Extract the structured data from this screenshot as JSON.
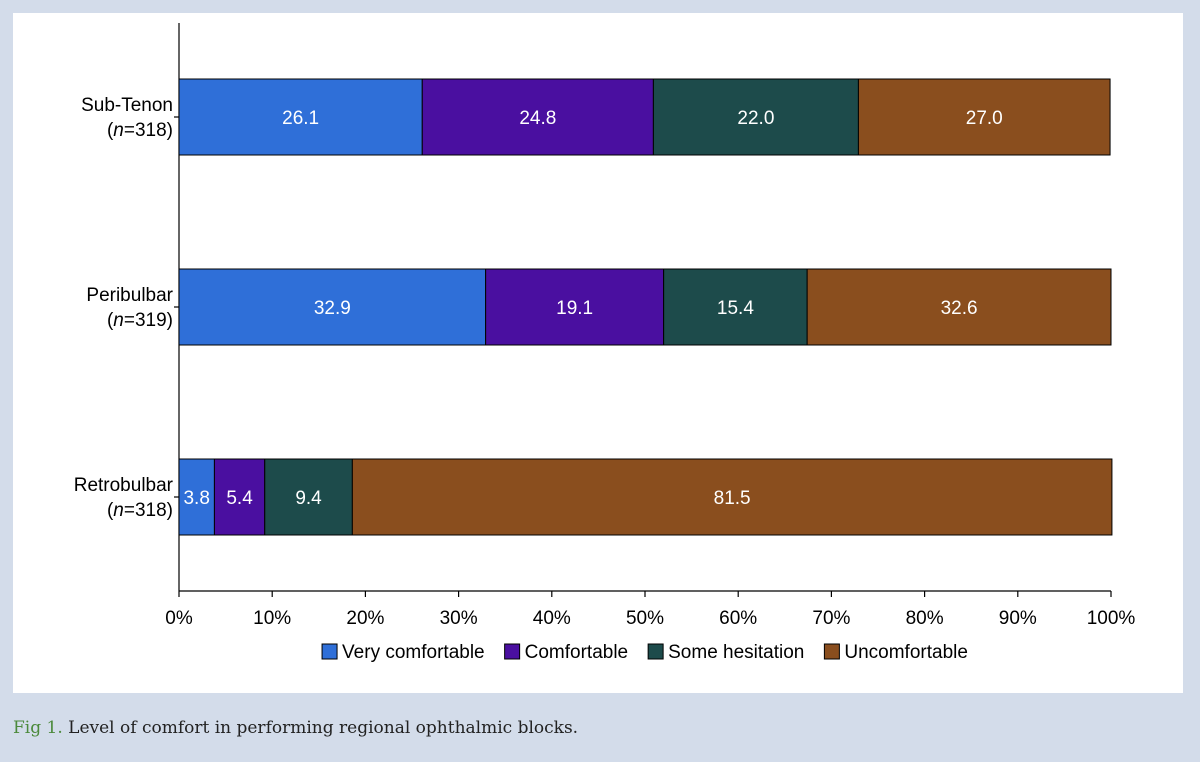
{
  "chart_data": {
    "type": "bar",
    "orientation": "horizontal",
    "stacked": true,
    "categories": [
      {
        "name": "Sub-Tenon",
        "n_label": "n",
        "n_value": "=318)"
      },
      {
        "name": "Peribulbar",
        "n_label": "n",
        "n_value": "=319)"
      },
      {
        "name": "Retrobulbar",
        "n_label": "n",
        "n_value": "=318)"
      }
    ],
    "series": [
      {
        "name": "Very comfortable",
        "color": "#2f6fd8",
        "values": [
          26.1,
          32.9,
          3.8
        ],
        "labels": [
          "26.1",
          "32.9",
          "3.8"
        ]
      },
      {
        "name": "Comfortable",
        "color": "#4a0fa0",
        "values": [
          24.8,
          19.1,
          5.4
        ],
        "labels": [
          "24.8",
          "19.1",
          "5.4"
        ]
      },
      {
        "name": "Some hesitation",
        "color": "#1d4b4b",
        "values": [
          22.0,
          15.4,
          9.4
        ],
        "labels": [
          "22.0",
          "15.4",
          "9.4"
        ]
      },
      {
        "name": "Uncomfortable",
        "color": "#8a4e1e",
        "values": [
          27.0,
          32.6,
          81.5
        ],
        "labels": [
          "27.0",
          "32.6",
          "81.5"
        ]
      }
    ],
    "xlim": [
      0,
      100
    ],
    "xticks": [
      "0%",
      "10%",
      "20%",
      "30%",
      "40%",
      "50%",
      "60%",
      "70%",
      "80%",
      "90%",
      "100%"
    ],
    "grid": false,
    "legend": "bottom"
  },
  "caption": {
    "label": "Fig 1.",
    "text": " Level of comfort in performing regional ophthalmic blocks."
  }
}
